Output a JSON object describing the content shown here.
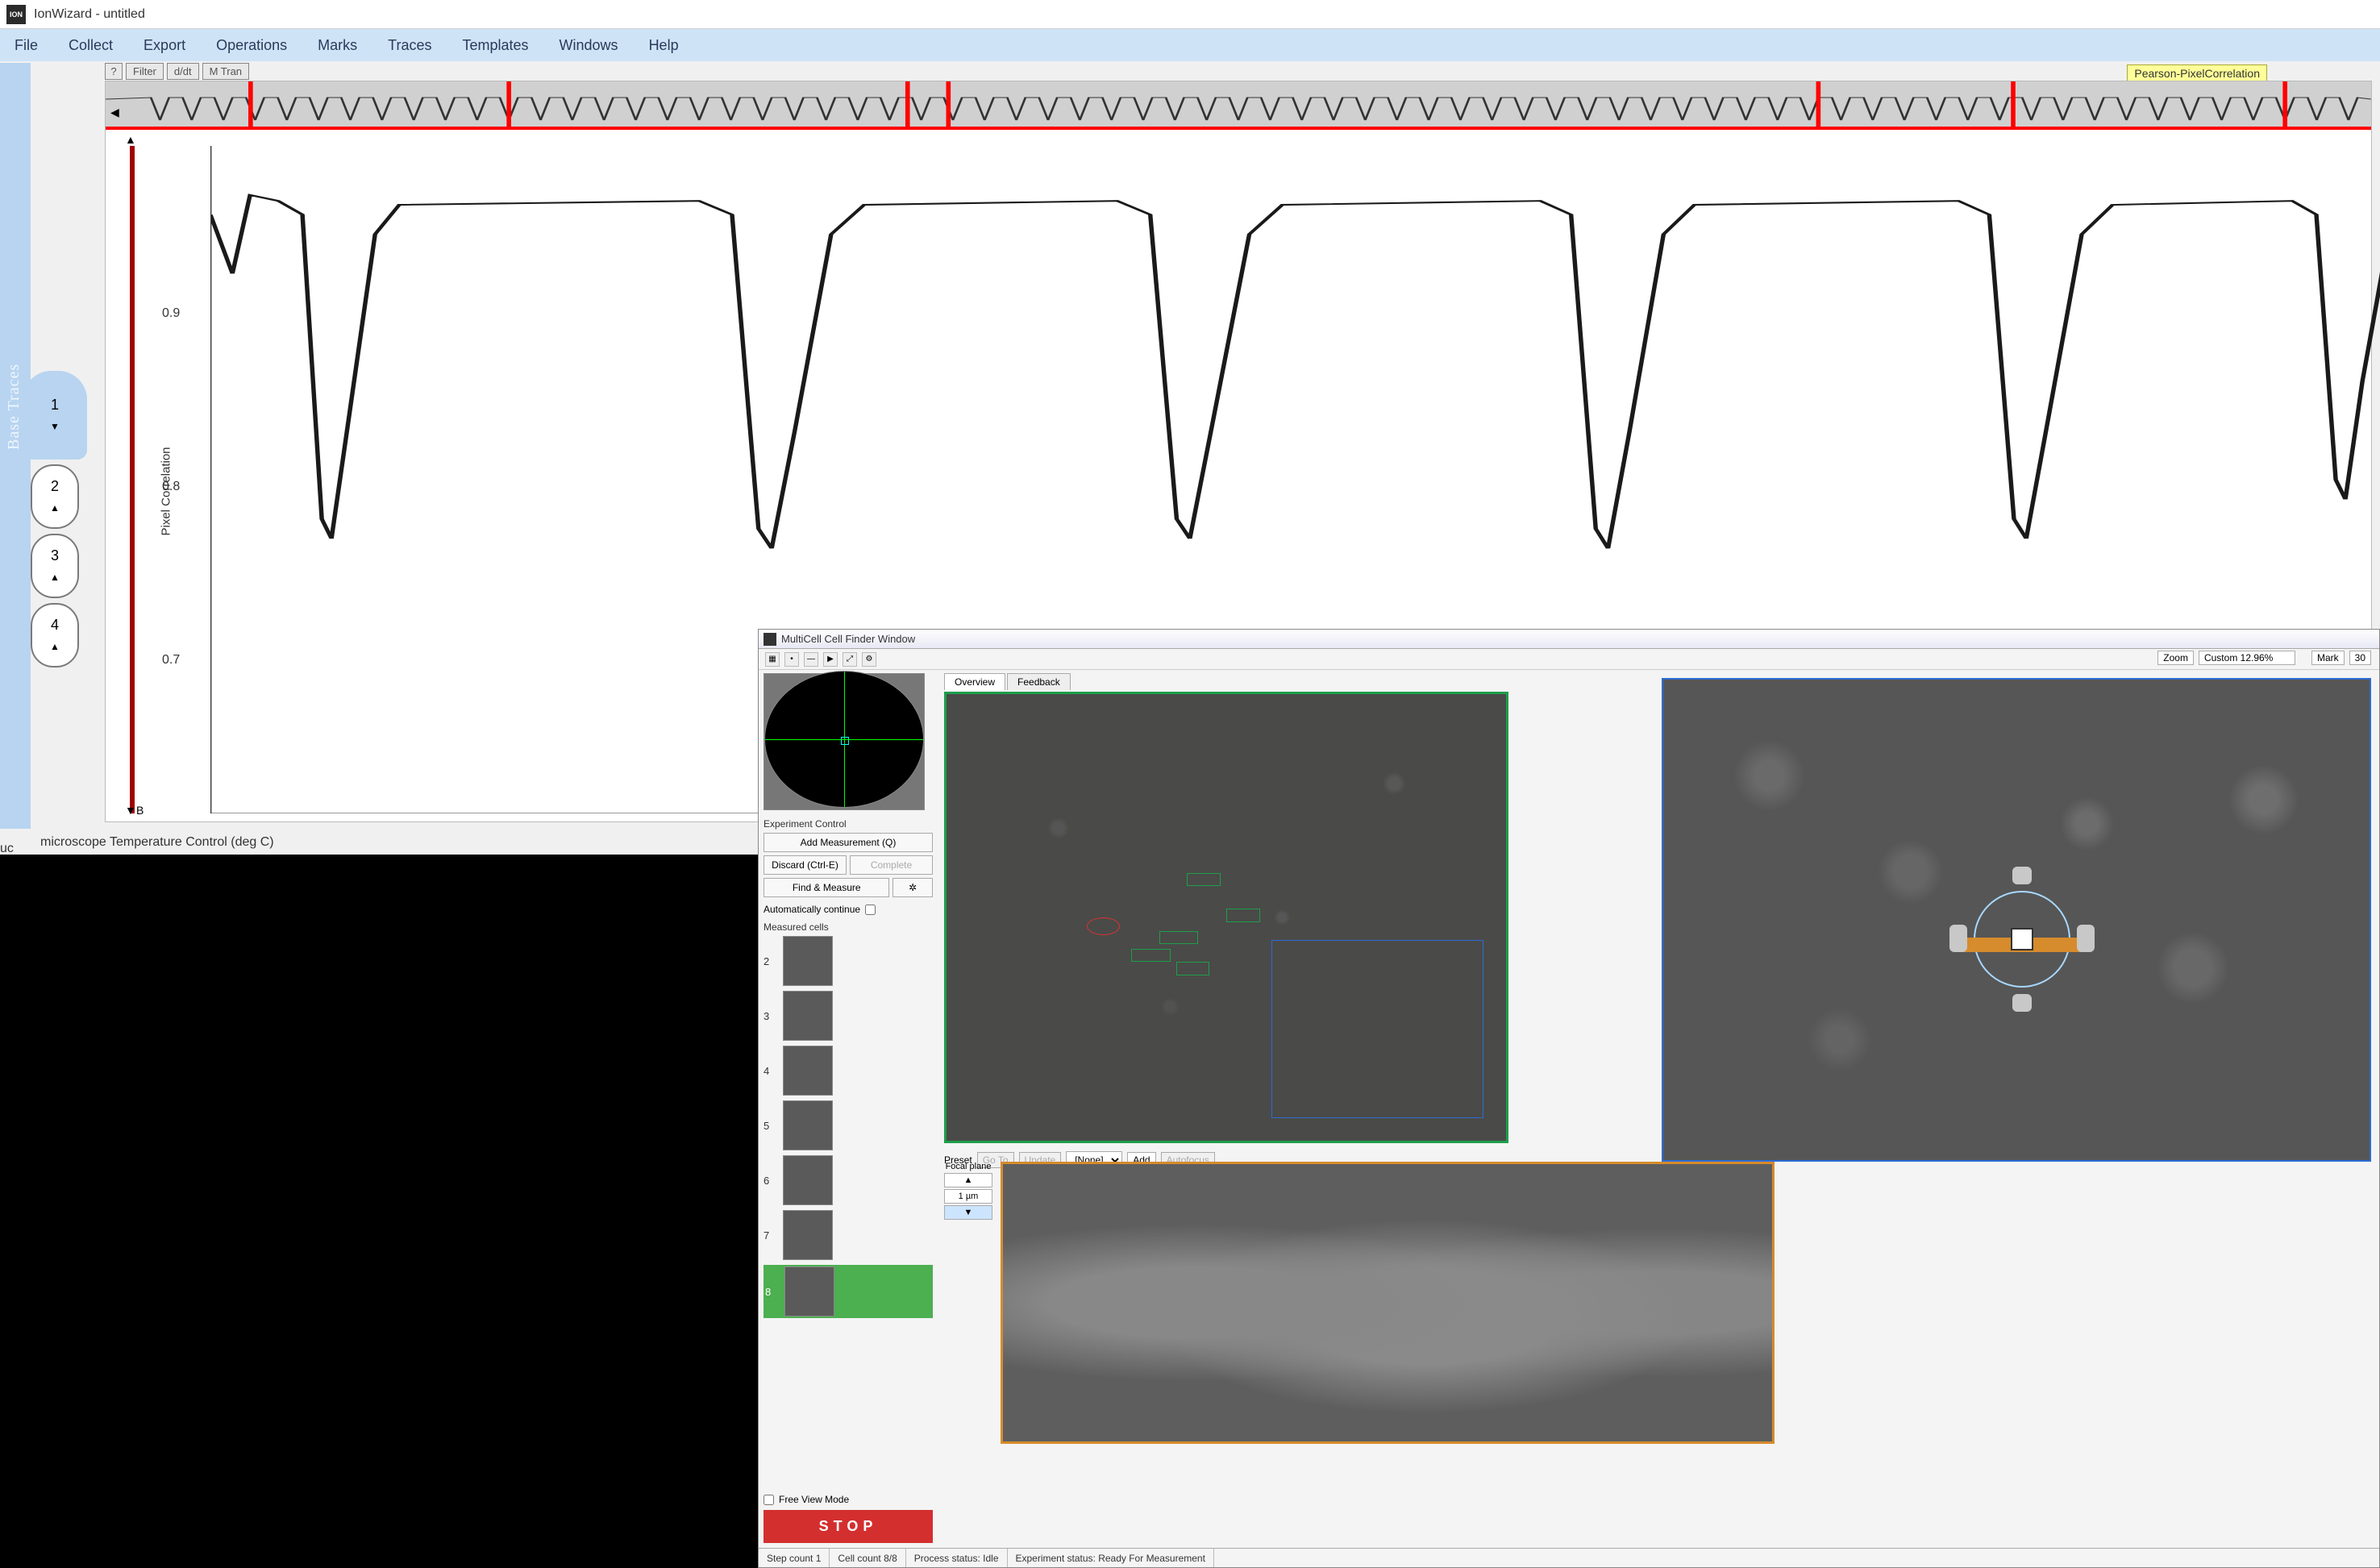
{
  "app": {
    "icon_text": "ION",
    "title": "IonWizard - untitled"
  },
  "menu": [
    "File",
    "Collect",
    "Export",
    "Operations",
    "Marks",
    "Traces",
    "Templates",
    "Windows",
    "Help"
  ],
  "toolbar": {
    "q": "?",
    "filter": "Filter",
    "ddt": "d/dt",
    "mtran": "M Tran"
  },
  "correlation_tag": "Pearson-PixelCorrelation",
  "sidebar_label": "Base Traces",
  "trace_tabs": [
    {
      "n": "1",
      "active": true,
      "arrow": "down"
    },
    {
      "n": "2",
      "arrow": "up"
    },
    {
      "n": "3",
      "arrow": "up"
    },
    {
      "n": "4",
      "arrow": "up"
    }
  ],
  "chart": {
    "y_label": "Pixel Correlation",
    "y_ticks": [
      {
        "v": "0.9",
        "pos_pct": 24
      },
      {
        "v": "0.8",
        "pos_pct": 50
      },
      {
        "v": "0.7",
        "pos_pct": 76
      }
    ],
    "ylim": [
      0.64,
      0.98
    ],
    "line_color": "#1a1a1a",
    "overview_bg": "#d0d0d0",
    "overview_red_markers": [
      0.064,
      0.178,
      0.354,
      0.372,
      0.756,
      0.842,
      0.962
    ],
    "trace": {
      "baseline": 0.955,
      "dips": [
        {
          "x": 0.055,
          "depth": 0.78,
          "w": 0.022
        },
        {
          "x": 0.255,
          "depth": 0.775,
          "w": 0.03
        },
        {
          "x": 0.445,
          "depth": 0.78,
          "w": 0.03
        },
        {
          "x": 0.635,
          "depth": 0.775,
          "w": 0.028
        },
        {
          "x": 0.825,
          "depth": 0.78,
          "w": 0.028
        },
        {
          "x": 0.97,
          "depth": 0.8,
          "w": 0.022
        }
      ]
    }
  },
  "bottom_status": "microscope Temperature Control (deg C)",
  "bottom_uc": "uc",
  "multicell": {
    "title": "MultiCell Cell Finder Window",
    "zoom": {
      "label": "Zoom",
      "value": "Custom 12.96%",
      "mark": "Mark",
      "mark_n": "30"
    },
    "section_exp": "Experiment Control",
    "btn_add": "Add Measurement (Q)",
    "btn_discard": "Discard (Ctrl-E)",
    "btn_complete": "Complete",
    "btn_find": "Find & Measure",
    "chk_auto": "Automatically continue",
    "section_cells": "Measured cells",
    "cells": [
      "2",
      "3",
      "4",
      "5",
      "6",
      "7",
      "8"
    ],
    "selected_cell_idx": 6,
    "chk_freeview": "Free View Mode",
    "stop": "STOP",
    "tabs": [
      "Overview",
      "Feedback"
    ],
    "preset": {
      "label": "Preset",
      "goto": "Go To",
      "update": "Update",
      "none": "[None]",
      "add": "Add",
      "autofocus": "Autofocus"
    },
    "focal": {
      "label": "Focal plane",
      "up": "▲",
      "val": "1 µm",
      "down": "▼"
    },
    "status": {
      "step": "Step count 1",
      "cells": "Cell count 8/8",
      "proc": "Process status: Idle",
      "exp": "Experiment status: Ready For Measurement"
    },
    "overview_rects": [
      {
        "cls": "green",
        "l": 43,
        "t": 40,
        "w": 6,
        "h": 3
      },
      {
        "cls": "green",
        "l": 50,
        "t": 48,
        "w": 6,
        "h": 3
      },
      {
        "cls": "green",
        "l": 38,
        "t": 53,
        "w": 7,
        "h": 3
      },
      {
        "cls": "green",
        "l": 33,
        "t": 57,
        "w": 7,
        "h": 3
      },
      {
        "cls": "green",
        "l": 41,
        "t": 60,
        "w": 6,
        "h": 3
      },
      {
        "cls": "red",
        "l": 25,
        "t": 50,
        "w": 6,
        "h": 4
      },
      {
        "cls": "blue",
        "l": 58,
        "t": 55,
        "w": 38,
        "h": 40
      }
    ]
  },
  "colors": {
    "menu_bg": "#cfe3f7",
    "sidebar_bg": "#b8d4f0",
    "accent_red": "#ff0000",
    "y_track": "#a00000",
    "mc_green": "#1e9e4a",
    "mc_orange": "#d68b2c",
    "mc_blue": "#2b6cd4",
    "stop": "#d32f2f"
  }
}
